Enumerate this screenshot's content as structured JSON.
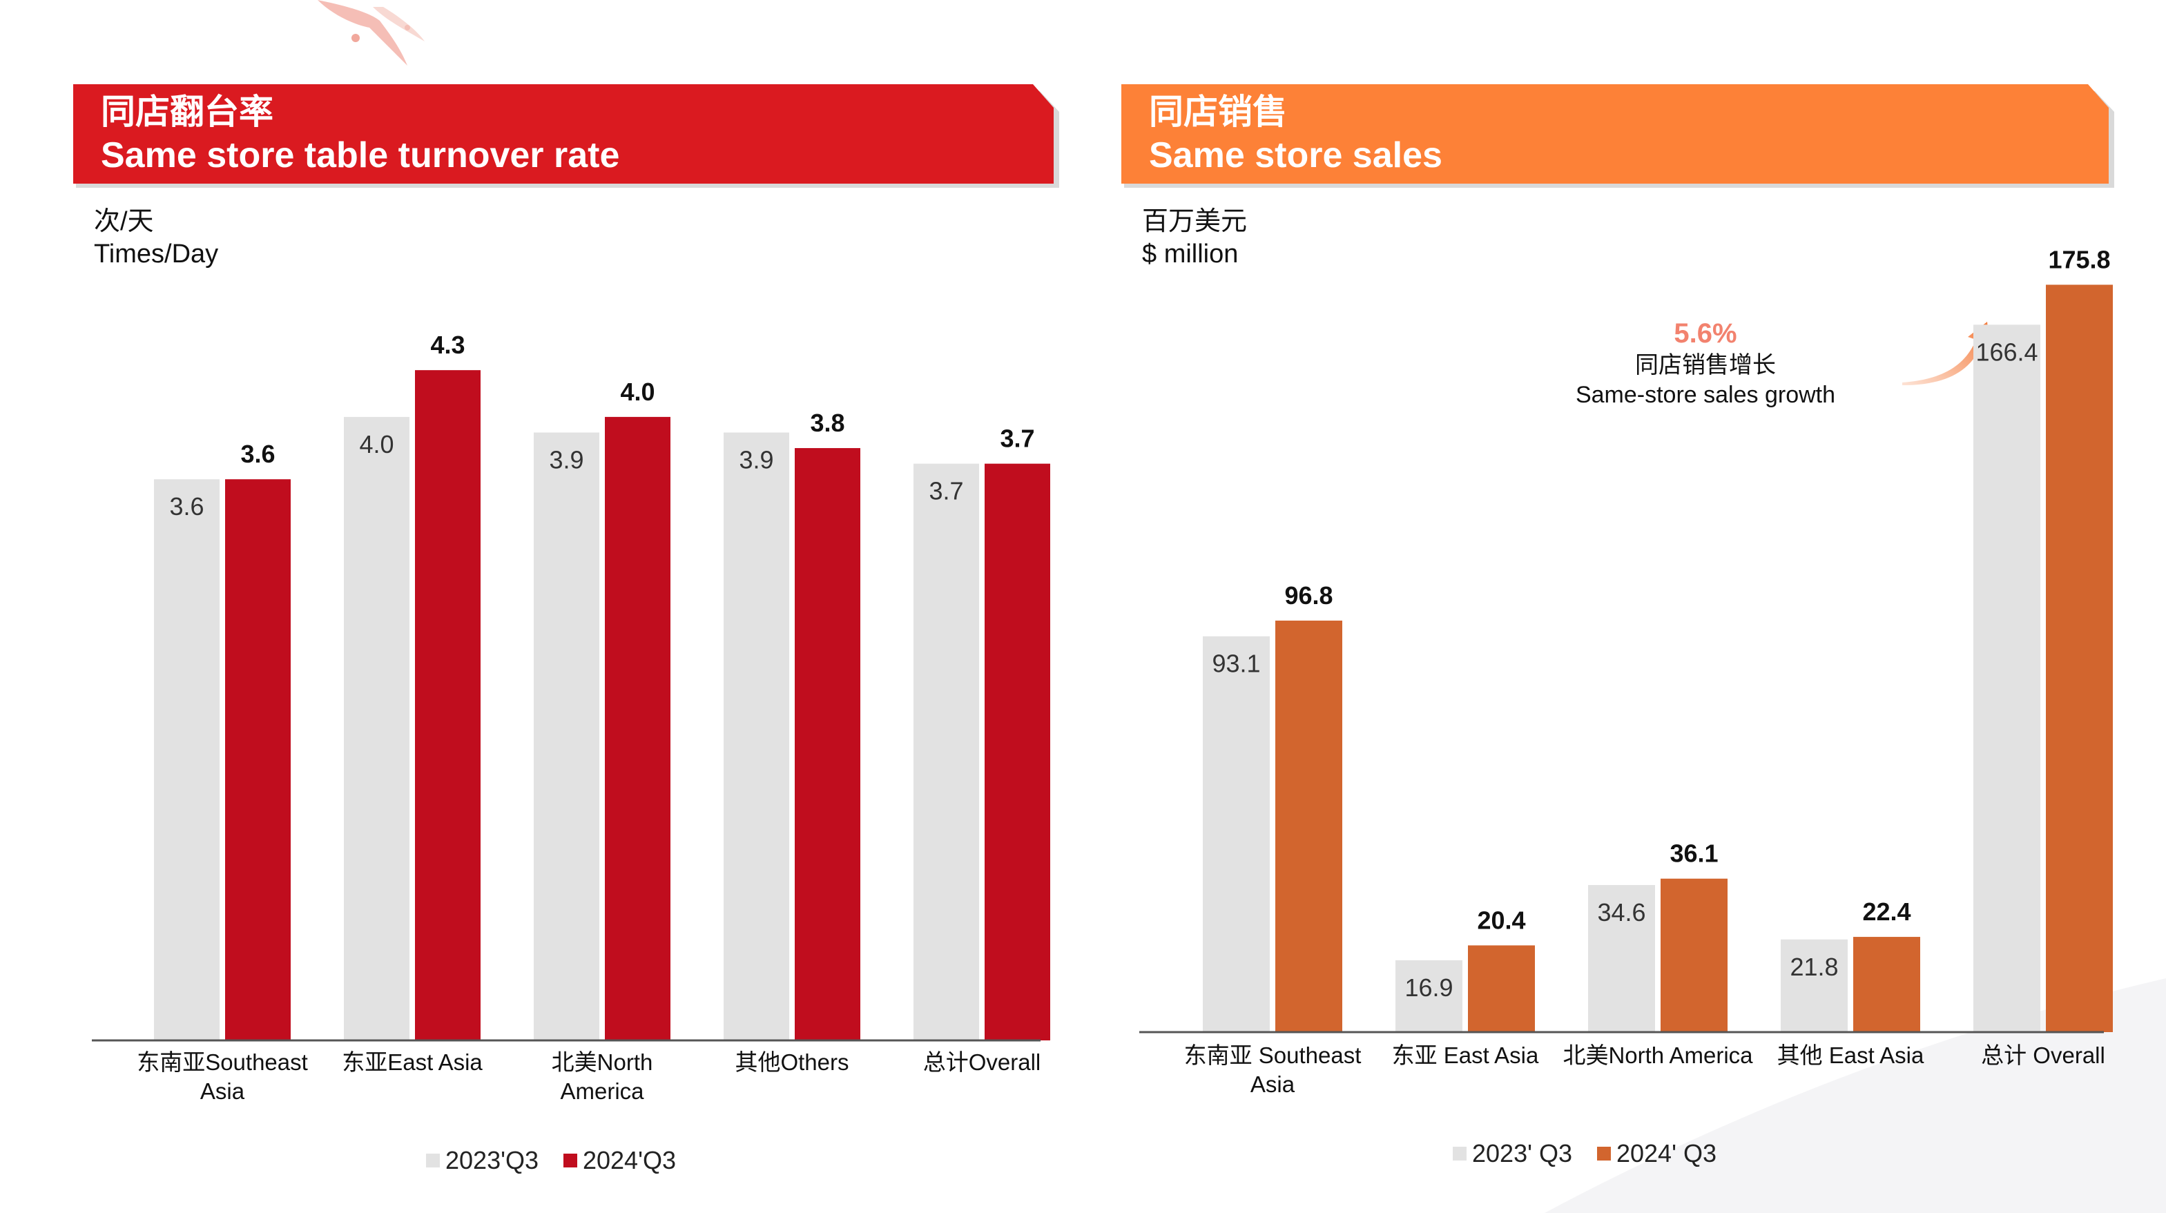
{
  "colors": {
    "red_banner": "#da1a20",
    "orange_banner": "#fd8137",
    "bar_2023": "#e2e2e2",
    "bar_red_2024": "#c00d1e",
    "bar_orange_2024": "#d2652e",
    "growth_text": "#f2826e"
  },
  "left_panel": {
    "title_cn": "同店翻台率",
    "title_en": "Same store table turnover rate",
    "unit_cn": "次/天",
    "unit_en": "Times/Day"
  },
  "right_panel": {
    "title_cn": "同店销售",
    "title_en": "Same store sales",
    "unit_cn": "百万美元",
    "unit_en": "$ million",
    "growth": {
      "pct": "5.6%",
      "label_cn": "同店销售增长",
      "label_en": "Same-store sales growth"
    }
  },
  "chart_data": [
    {
      "type": "bar",
      "title": "同店翻台率 Same store table turnover rate",
      "ylabel": "次/天 Times/Day",
      "xlabel": "",
      "categories": [
        [
          "东南亚Southeast",
          "Asia"
        ],
        [
          "东亚East Asia"
        ],
        [
          "北美North",
          "America"
        ],
        [
          "其他Others"
        ],
        [
          "总计Overall"
        ]
      ],
      "ylim": [
        0,
        4.5
      ],
      "grid": false,
      "legend_position": "bottom",
      "series": [
        {
          "name": "2023'Q3",
          "values": [
            3.6,
            4.0,
            3.9,
            3.9,
            3.7
          ],
          "labels": [
            "3.6",
            "4.0",
            "3.9",
            "3.9",
            "3.7"
          ]
        },
        {
          "name": "2024'Q3",
          "values": [
            3.6,
            4.3,
            4.0,
            3.8,
            3.7
          ],
          "labels": [
            "3.6",
            "4.3",
            "4.0",
            "3.8",
            "3.7"
          ]
        }
      ]
    },
    {
      "type": "bar",
      "title": "同店销售 Same store sales",
      "ylabel": "百万美元 $ million",
      "xlabel": "",
      "categories": [
        [
          "东南亚 Southeast",
          "Asia"
        ],
        [
          "东亚 East Asia"
        ],
        [
          "北美North America"
        ],
        [
          "其他 East Asia"
        ],
        [
          "总计 Overall"
        ]
      ],
      "ylim": [
        0,
        190
      ],
      "grid": false,
      "legend_position": "bottom",
      "series": [
        {
          "name": "2023' Q3",
          "values": [
            93.1,
            16.9,
            34.6,
            21.8,
            166.4
          ],
          "labels": [
            "93.1",
            "16.9",
            "34.6",
            "21.8",
            "166.4"
          ]
        },
        {
          "name": "2024' Q3",
          "values": [
            96.8,
            20.4,
            36.1,
            22.4,
            175.8
          ],
          "labels": [
            "96.8",
            "20.4",
            "36.1",
            "22.4",
            "175.8"
          ]
        }
      ]
    }
  ]
}
